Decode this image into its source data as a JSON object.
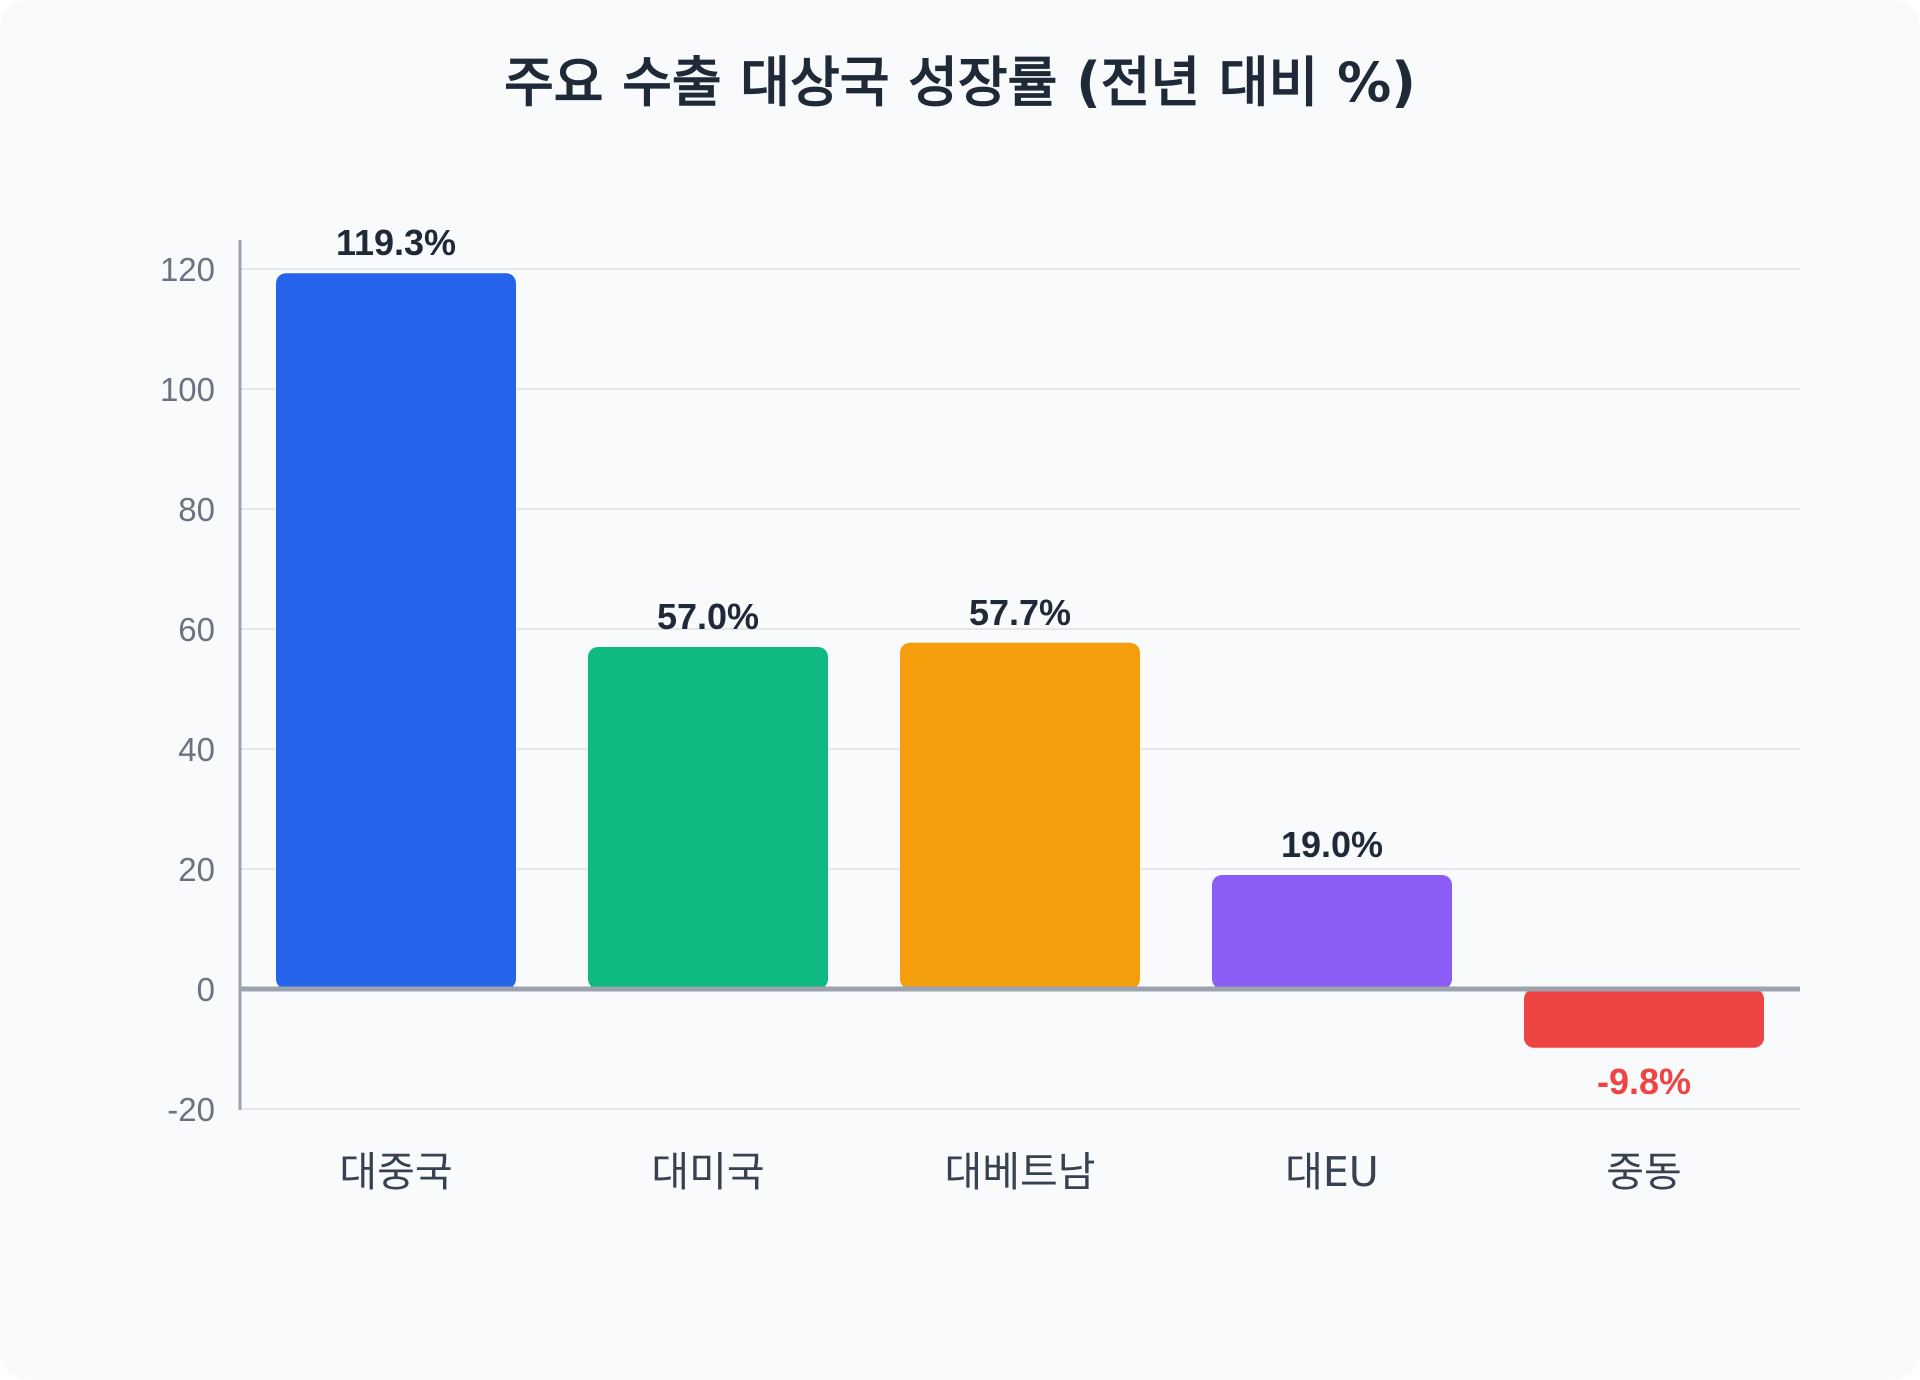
{
  "chart_data": {
    "type": "bar",
    "title": "주요 수출 대상국 성장률 (전년 대비 %)",
    "categories": [
      "대중국",
      "대미국",
      "대베트남",
      "대EU",
      "중동"
    ],
    "values": [
      119.3,
      57.0,
      57.7,
      19.0,
      -9.8
    ],
    "value_labels": [
      "119.3%",
      "57.0%",
      "57.7%",
      "19.0%",
      "-9.8%"
    ],
    "bar_colors": [
      "#2563eb",
      "#10b981",
      "#f59e0b",
      "#8b5cf6",
      "#ef4444"
    ],
    "label_colors": [
      "#1f2937",
      "#1f2937",
      "#1f2937",
      "#1f2937",
      "#ef4444"
    ],
    "yticks": [
      -20,
      0,
      20,
      40,
      60,
      80,
      100,
      120
    ],
    "ylim": [
      -20,
      125
    ],
    "xlabel": "",
    "ylabel": "",
    "grid": true,
    "legend": "none"
  }
}
